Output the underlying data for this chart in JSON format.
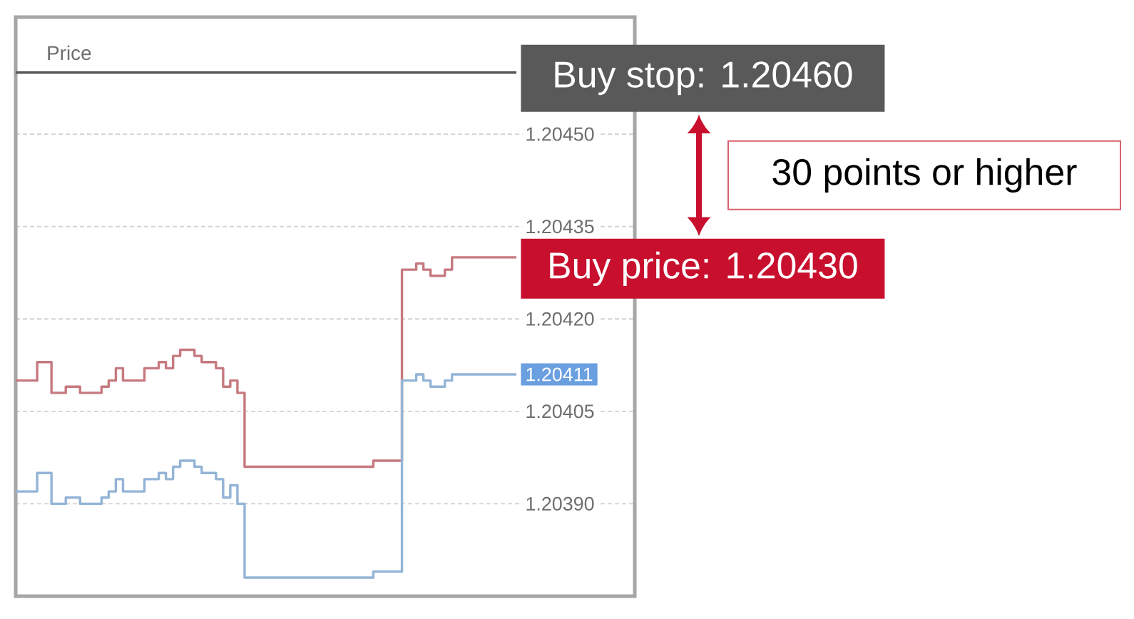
{
  "chart_data": {
    "type": "step",
    "title": "Price",
    "categories": [
      null,
      null,
      null,
      null,
      null,
      null,
      null,
      null,
      null,
      null,
      null,
      null,
      null,
      null,
      null,
      null,
      null,
      null,
      null,
      null,
      null,
      null,
      null,
      null,
      null,
      null,
      null,
      null,
      null,
      null,
      null,
      null,
      null,
      null,
      null,
      null,
      null,
      null,
      null,
      null,
      null,
      null,
      null,
      null,
      null,
      null,
      null,
      null,
      null,
      null,
      null,
      null,
      null,
      null,
      null,
      null,
      null,
      null,
      null,
      null,
      null,
      null,
      null,
      null,
      null,
      null,
      null,
      null,
      null,
      null,
      null
    ],
    "series": [
      {
        "color": "#c6797f",
        "values": [
          1.2041,
          1.2041,
          1.2041,
          1.20413,
          1.20413,
          1.20408,
          1.20408,
          1.20409,
          1.20409,
          1.20408,
          1.20408,
          1.20408,
          1.20409,
          1.2041,
          1.20412,
          1.2041,
          1.2041,
          1.2041,
          1.20412,
          1.20412,
          1.20413,
          1.20412,
          1.20414,
          1.20415,
          1.20415,
          1.20414,
          1.20413,
          1.20413,
          1.20412,
          1.20409,
          1.2041,
          1.20408,
          1.20396,
          1.20396,
          1.20396,
          1.20396,
          1.20396,
          1.20396,
          1.20396,
          1.20396,
          1.20396,
          1.20396,
          1.20396,
          1.20396,
          1.20396,
          1.20396,
          1.20396,
          1.20396,
          1.20396,
          1.20396,
          1.20397,
          1.20397,
          1.20397,
          1.20397,
          1.20428,
          1.20428,
          1.20429,
          1.20428,
          1.20427,
          1.20427,
          1.20428,
          1.2043,
          1.2043,
          1.2043,
          1.2043,
          1.2043,
          1.2043,
          1.2043,
          1.2043,
          1.2043,
          1.2043
        ],
        "value_labels": [
          null,
          null,
          null,
          null,
          null,
          null,
          null,
          null,
          null,
          null,
          null,
          null,
          null,
          null,
          null,
          null,
          null,
          null,
          null,
          null,
          null,
          null,
          null,
          null,
          null,
          null,
          null,
          null,
          null,
          null,
          null,
          null,
          null,
          null,
          null,
          null,
          null,
          null,
          null,
          null,
          null,
          null,
          null,
          null,
          null,
          null,
          null,
          null,
          null,
          null,
          null,
          null,
          null,
          null,
          null,
          null,
          null,
          null,
          null,
          null,
          null,
          null,
          null,
          null,
          null,
          null,
          null,
          null,
          null,
          null,
          "Buy price: 1.20430"
        ]
      },
      {
        "color": "#93b4d6",
        "values": [
          1.20392,
          1.20392,
          1.20392,
          1.20395,
          1.20395,
          1.2039,
          1.2039,
          1.20391,
          1.20391,
          1.2039,
          1.2039,
          1.2039,
          1.20391,
          1.20392,
          1.20394,
          1.20392,
          1.20392,
          1.20392,
          1.20394,
          1.20394,
          1.20395,
          1.20394,
          1.20396,
          1.20397,
          1.20397,
          1.20396,
          1.20395,
          1.20395,
          1.20394,
          1.20391,
          1.20393,
          1.2039,
          1.20378,
          1.20378,
          1.20378,
          1.20378,
          1.20378,
          1.20378,
          1.20378,
          1.20378,
          1.20378,
          1.20378,
          1.20378,
          1.20378,
          1.20378,
          1.20378,
          1.20378,
          1.20378,
          1.20378,
          1.20378,
          1.20379,
          1.20379,
          1.20379,
          1.20379,
          1.2041,
          1.2041,
          1.20411,
          1.2041,
          1.20409,
          1.20409,
          1.2041,
          1.20411,
          1.20411,
          1.20411,
          1.20411,
          1.20411,
          1.20411,
          1.20411,
          1.20411,
          1.20411,
          1.20411
        ],
        "value_labels": [
          null,
          null,
          null,
          null,
          null,
          null,
          null,
          null,
          null,
          null,
          null,
          null,
          null,
          null,
          null,
          null,
          null,
          null,
          null,
          null,
          null,
          null,
          null,
          null,
          null,
          null,
          null,
          null,
          null,
          null,
          null,
          null,
          null,
          null,
          null,
          null,
          null,
          null,
          null,
          null,
          null,
          null,
          null,
          null,
          null,
          null,
          null,
          null,
          null,
          null,
          null,
          null,
          null,
          null,
          null,
          null,
          null,
          null,
          null,
          null,
          null,
          null,
          null,
          null,
          null,
          null,
          null,
          null,
          null,
          null,
          "1.20411"
        ]
      }
    ],
    "ylim": [
      1.20375,
      1.20469
    ],
    "yticks": [
      {
        "value": 1.2039,
        "label": "1.20390"
      },
      1.20405,
      {
        "value": 1.2042,
        "label": "1.20420"
      },
      1.20435,
      {
        "value": 1.2045,
        "label": "1.20450"
      }
    ],
    "grid": "y",
    "line_style": "solid",
    "ref_lines": [
      {
        "axis": "y",
        "value": 1.2046,
        "label": "Buy stop: 1.20460",
        "color": "#595959"
      }
    ],
    "annotations": [
      "30 points or higher"
    ]
  }
}
